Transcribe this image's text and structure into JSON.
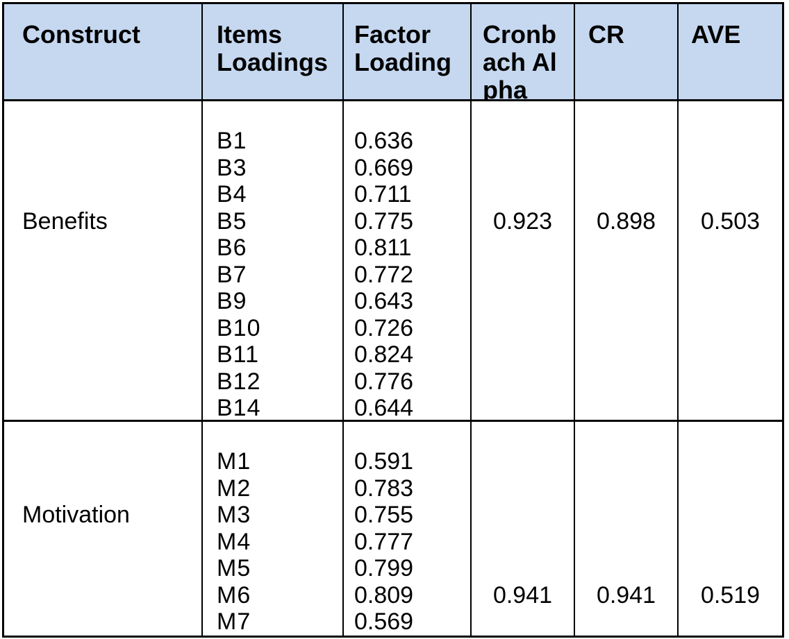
{
  "style": {
    "header_bg": "#c6d8f0",
    "border_color": "#000000",
    "text_color": "#000000"
  },
  "table": {
    "header": {
      "columns": [
        {
          "id": "construct",
          "label": "Construct"
        },
        {
          "id": "items",
          "label": "Items Loadings"
        },
        {
          "id": "factor",
          "label": "Factor Loading"
        },
        {
          "id": "cronbach",
          "label": "Cronbach Alpha"
        },
        {
          "id": "cr",
          "label": "CR"
        },
        {
          "id": "ave",
          "label": "AVE"
        }
      ]
    },
    "rows": [
      {
        "construct": "Benefits",
        "items": [
          "B1",
          "B3",
          "B4",
          "B5",
          "B6",
          "B7",
          "B9",
          "B10",
          "B11",
          "B12",
          "B14"
        ],
        "loadings": [
          "0.636",
          "0.669",
          "0.711",
          "0.775",
          "0.811",
          "0.772",
          "0.643",
          "0.726",
          "0.824",
          "0.776",
          "0.644"
        ],
        "cronbach_alpha": "0.923",
        "cr": "0.898",
        "ave": "0.503"
      },
      {
        "construct": "Motivation",
        "items": [
          "M1",
          "M2",
          "M3",
          "M4",
          "M5",
          "M6",
          "M7"
        ],
        "loadings": [
          "0.591",
          "0.783",
          "0.755",
          "0.777",
          "0.799",
          "0.809",
          "0.569"
        ],
        "cronbach_alpha": "0.941",
        "cr": "0.941",
        "ave": "0.519"
      }
    ]
  }
}
